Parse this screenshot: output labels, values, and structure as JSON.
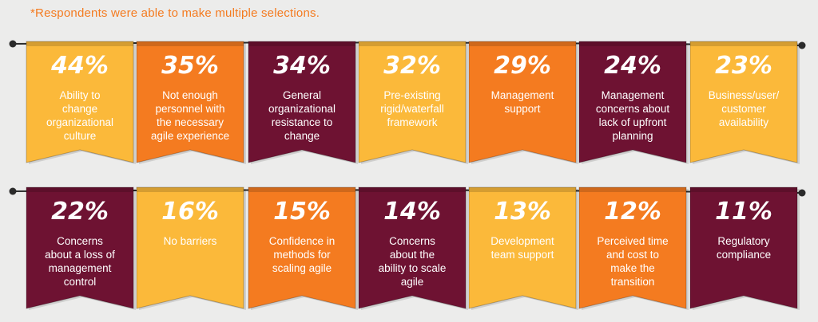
{
  "footnote": "*Respondents were able to make multiple selections.",
  "colors": {
    "yellow": "#fbb93a",
    "orange": "#f47b20",
    "maroon": "#6e1232",
    "white": "#ffffff",
    "text_dark": "#2a2a2a",
    "rope": "#2b2b2b",
    "background": "#ececeb"
  },
  "chart_data": {
    "type": "bar",
    "unit": "%",
    "rows": [
      [
        {
          "value": 44,
          "label": "Ability to change organizational culture",
          "color": "yellow",
          "lines": [
            "Ability to",
            "change",
            "organizational",
            "culture"
          ]
        },
        {
          "value": 35,
          "label": "Not enough personnel with the necessary agile experience",
          "color": "orange",
          "lines": [
            "Not enough",
            "personnel with",
            "the necessary",
            "agile experience"
          ]
        },
        {
          "value": 34,
          "label": "General organizational resistance to change",
          "color": "maroon",
          "lines": [
            "General",
            "organizational",
            "resistance to",
            "change"
          ]
        },
        {
          "value": 32,
          "label": "Pre-existing rigid/waterfall framework",
          "color": "yellow",
          "lines": [
            "Pre-existing",
            "rigid/waterfall",
            "framework"
          ]
        },
        {
          "value": 29,
          "label": "Management support",
          "color": "orange",
          "lines": [
            "Management",
            "support"
          ]
        },
        {
          "value": 24,
          "label": "Management concerns about lack of upfront planning",
          "color": "maroon",
          "lines": [
            "Management",
            "concerns about",
            "lack of upfront",
            "planning"
          ]
        },
        {
          "value": 23,
          "label": "Business/user/customer availability",
          "color": "yellow",
          "lines": [
            "Business/user/",
            "customer",
            "availability"
          ]
        }
      ],
      [
        {
          "value": 22,
          "label": "Concerns about a loss of management control",
          "color": "maroon",
          "lines": [
            "Concerns",
            "about a loss of",
            "management",
            "control"
          ]
        },
        {
          "value": 16,
          "label": "No barriers",
          "color": "yellow",
          "lines": [
            "No barriers"
          ]
        },
        {
          "value": 15,
          "label": "Confidence in methods for scaling agile",
          "color": "orange",
          "lines": [
            "Confidence in",
            "methods for",
            "scaling agile"
          ]
        },
        {
          "value": 14,
          "label": "Concerns about the ability to scale agile",
          "color": "maroon",
          "lines": [
            "Concerns",
            "about the",
            "ability to scale",
            "agile"
          ]
        },
        {
          "value": 13,
          "label": "Development team support",
          "color": "yellow",
          "lines": [
            "Development",
            "team support"
          ]
        },
        {
          "value": 12,
          "label": "Perceived time and cost to make the transition",
          "color": "orange",
          "lines": [
            "Perceived time",
            "and cost to",
            "make the",
            "transition"
          ]
        },
        {
          "value": 11,
          "label": "Regulatory compliance",
          "color": "maroon",
          "lines": [
            "Regulatory",
            "compliance"
          ]
        }
      ]
    ]
  }
}
